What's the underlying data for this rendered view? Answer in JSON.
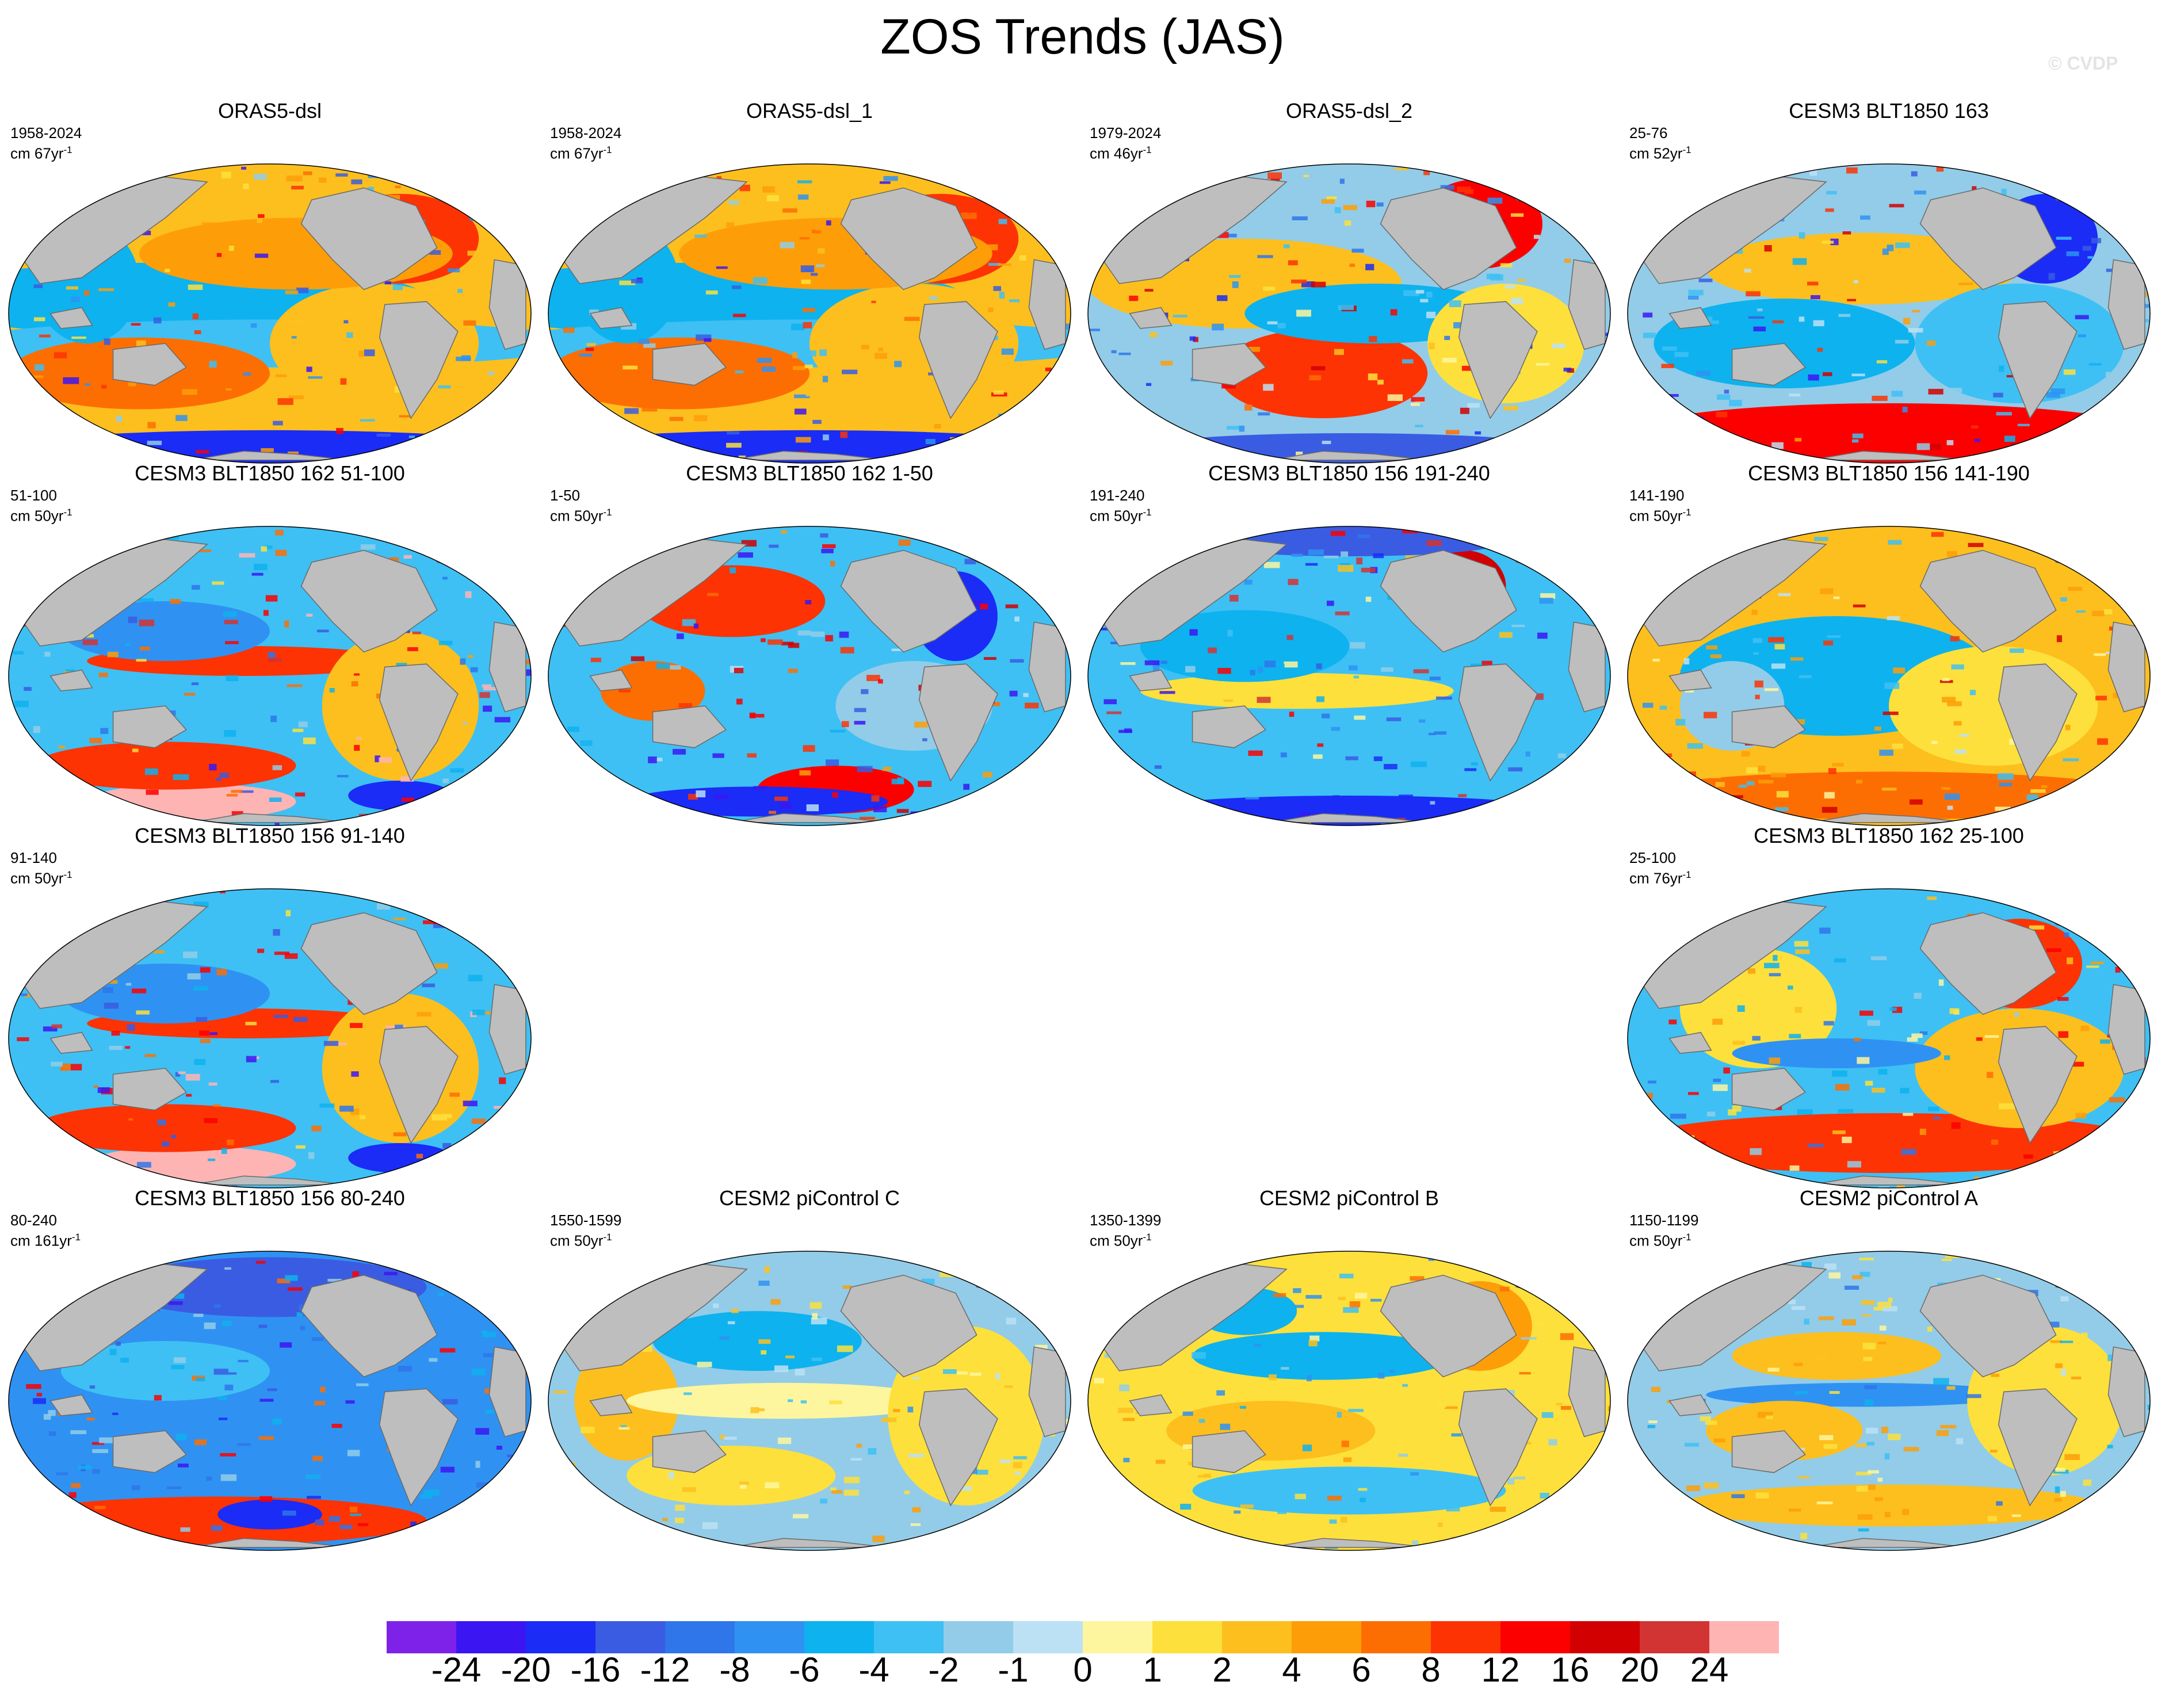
{
  "title": "ZOS Trends (JAS)",
  "watermark": "© CVDP",
  "panels": [
    {
      "title": "ORAS5-dsl",
      "years": "1958-2024",
      "units": "cm 67yr",
      "units_sup": "-1",
      "pattern": "reanalysis"
    },
    {
      "title": "ORAS5-dsl_1",
      "years": "1958-2024",
      "units": "cm 67yr",
      "units_sup": "-1",
      "pattern": "reanalysis"
    },
    {
      "title": "ORAS5-dsl_2",
      "years": "1979-2024",
      "units": "cm 46yr",
      "units_sup": "-1",
      "pattern": "reanalysis2"
    },
    {
      "title": "CESM3 BLT1850 163",
      "years": "25-76",
      "units": "cm 52yr",
      "units_sup": "-1",
      "pattern": "warm_south"
    },
    {
      "title": "CESM3 BLT1850 162 51-100",
      "years": "51-100",
      "units": "cm 50yr",
      "units_sup": "-1",
      "pattern": "cool_pink_south"
    },
    {
      "title": "CESM3 BLT1850 162 1-50",
      "years": "1-50",
      "units": "cm 50yr",
      "units_sup": "-1",
      "pattern": "mixed"
    },
    {
      "title": "CESM3 BLT1850 156 191-240",
      "years": "191-240",
      "units": "cm 50yr",
      "units_sup": "-1",
      "pattern": "cool"
    },
    {
      "title": "CESM3 BLT1850 156 141-190",
      "years": "141-190",
      "units": "cm 50yr",
      "units_sup": "-1",
      "pattern": "warm"
    },
    {
      "title": "CESM3 BLT1850 156 91-140",
      "years": "91-140",
      "units": "cm 50yr",
      "units_sup": "-1",
      "pattern": "cool_pink_south"
    },
    {
      "title": "CESM3 BLT1850 162 25-100",
      "years": "25-100",
      "units": "cm 76yr",
      "units_sup": "-1",
      "pattern": "mixed_warm_south"
    },
    {
      "title": "CESM3 BLT1850 156 80-240",
      "years": "80-240",
      "units": "cm 161yr",
      "units_sup": "-1",
      "pattern": "strong_cool"
    },
    {
      "title": "CESM2 piControl C",
      "years": "1550-1599",
      "units": "cm 50yr",
      "units_sup": "-1",
      "pattern": "smooth_cool"
    },
    {
      "title": "CESM2 piControl B",
      "years": "1350-1399",
      "units": "cm 50yr",
      "units_sup": "-1",
      "pattern": "smooth_warm"
    },
    {
      "title": "CESM2 piControl A",
      "years": "1150-1199",
      "units": "cm 50yr",
      "units_sup": "-1",
      "pattern": "smooth_mixed"
    }
  ],
  "colorbar": {
    "colors": [
      "#7e22ea",
      "#3c16f2",
      "#1a2cf6",
      "#3a5ce2",
      "#2f76ea",
      "#2f92f2",
      "#0eb2ee",
      "#3ec0f4",
      "#92cce8",
      "#bce0f4",
      "#fef69e",
      "#fde03c",
      "#fdbf1e",
      "#fd9e08",
      "#fd6e02",
      "#fd3304",
      "#fc0000",
      "#d20000",
      "#d23434",
      "#ffb4b4"
    ],
    "labels": [
      "-24",
      "-20",
      "-16",
      "-12",
      "-8",
      "-6",
      "-4",
      "-2",
      "-1",
      "0",
      "1",
      "2",
      "4",
      "6",
      "8",
      "12",
      "16",
      "20",
      "24"
    ]
  },
  "colors": {
    "land": "#bebebe",
    "coast": "#6a6a6a"
  }
}
